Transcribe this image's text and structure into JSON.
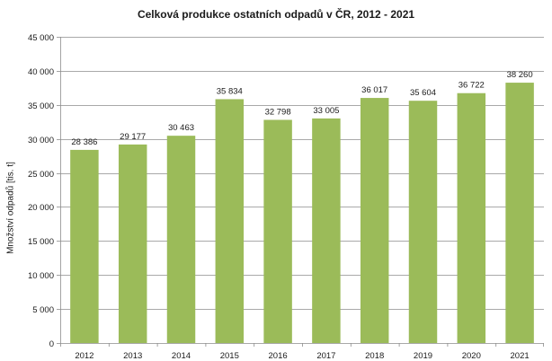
{
  "chart_data": {
    "type": "bar",
    "title": "Celková produkce ostatních odpadů v ČR, 2012 - 2021",
    "xlabel": "",
    "ylabel": "Množství odpadů [tis. t]",
    "categories": [
      "2012",
      "2013",
      "2014",
      "2015",
      "2016",
      "2017",
      "2018",
      "2019",
      "2020",
      "2021"
    ],
    "values": [
      28386,
      29177,
      30463,
      35834,
      32798,
      33005,
      36017,
      35604,
      36722,
      38260
    ],
    "value_labels": [
      "28 386",
      "29 177",
      "30 463",
      "35 834",
      "32 798",
      "33 005",
      "36 017",
      "35 604",
      "36 722",
      "38 260"
    ],
    "ylim": [
      0,
      45000
    ],
    "y_ticks": [
      0,
      5000,
      10000,
      15000,
      20000,
      25000,
      30000,
      35000,
      40000,
      45000
    ],
    "y_tick_labels": [
      "0",
      "5 000",
      "10 000",
      "15 000",
      "20 000",
      "25 000",
      "30 000",
      "35 000",
      "40 000",
      "45 000"
    ],
    "grid": true,
    "legend": "none",
    "colors": {
      "bar": "#9bbb59",
      "grid": "#8c8c8c",
      "axis": "#8c8c8c"
    }
  }
}
